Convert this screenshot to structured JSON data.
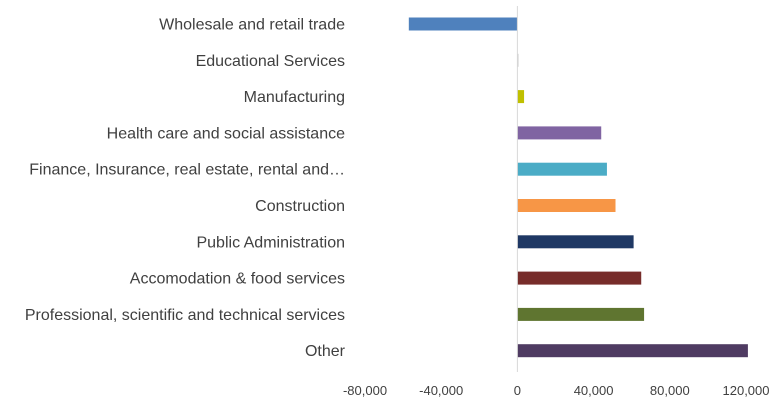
{
  "chart_data": {
    "type": "bar",
    "orientation": "horizontal",
    "categories": [
      "Wholesale and retail trade",
      "Educational Services",
      "Manufacturing",
      "Health care and social assistance",
      "Finance, Insurance, real estate, rental and…",
      "Construction",
      "Public Administration",
      "Accomodation & food services",
      "Professional, scientific and technical services",
      "Other"
    ],
    "values": [
      -57000,
      500,
      3500,
      44000,
      47000,
      51500,
      61000,
      65000,
      66500,
      121000
    ],
    "colors": [
      "#4f81bd",
      "#c0c0c0",
      "#c0c000",
      "#8064a2",
      "#4bacc6",
      "#f79646",
      "#1f3864",
      "#772c2a",
      "#5f7530",
      "#4f3b62"
    ],
    "xlim": [
      -80000,
      120000
    ],
    "xticks": [
      -80000,
      -40000,
      0,
      40000,
      80000,
      120000
    ],
    "xtick_labels": [
      "-80,000",
      "-40,000",
      "0",
      "40,000",
      "80,000",
      "120,000"
    ],
    "grid": false,
    "legend": "none"
  }
}
